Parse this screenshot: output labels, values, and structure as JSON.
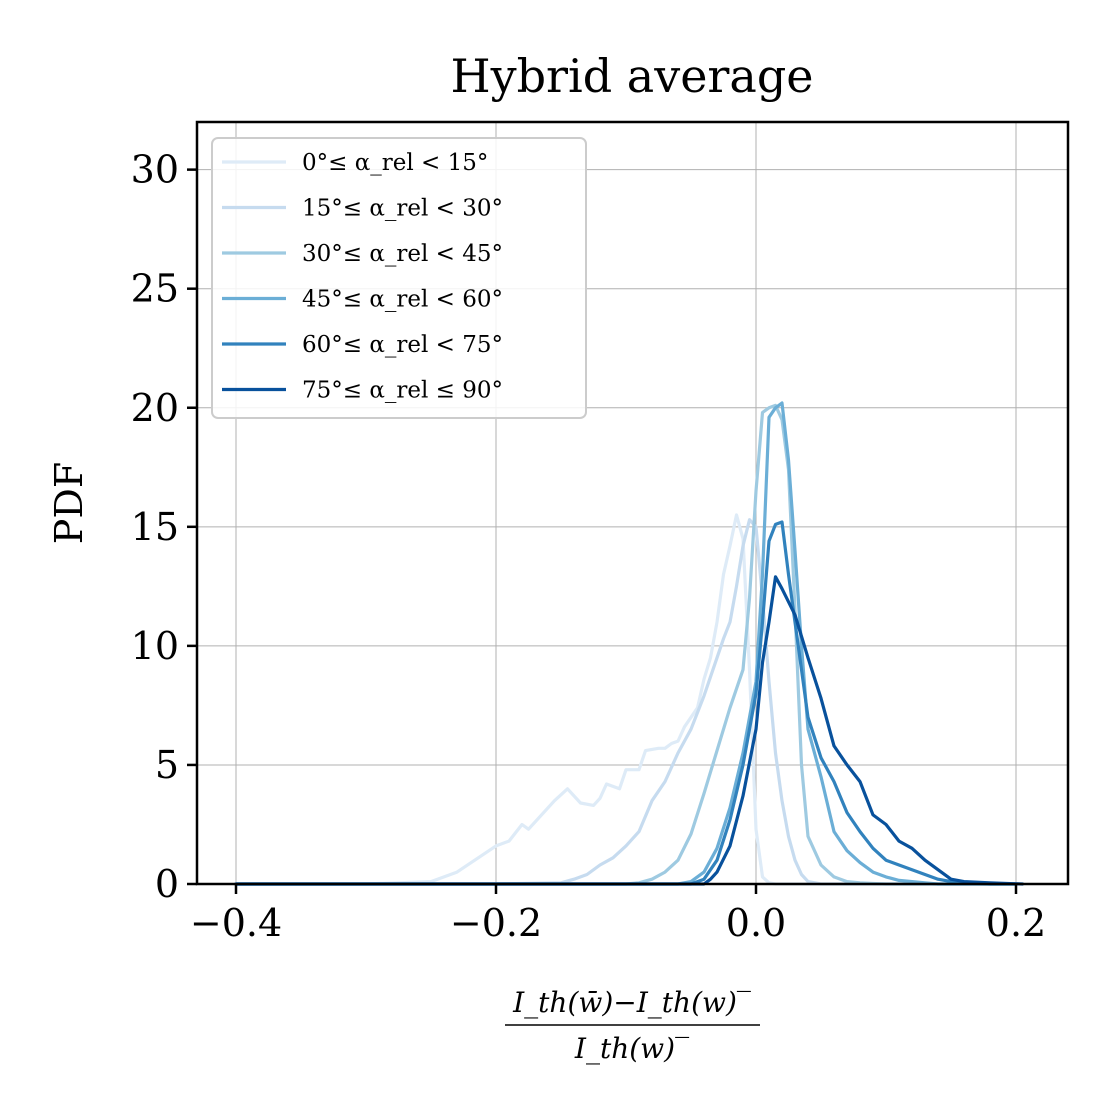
{
  "chart_data": {
    "type": "line",
    "title": "Hybrid average",
    "ylabel": "PDF",
    "xlabel_numerator": "I_th(w̄)−I_th(w)‾",
    "xlabel_denominator": "I_th(w)‾",
    "xlim": [
      -0.43,
      0.24
    ],
    "ylim": [
      0,
      32
    ],
    "xticks": [
      -0.4,
      -0.2,
      0.0,
      0.2
    ],
    "xtick_labels": [
      "−0.4",
      "−0.2",
      "0.0",
      "0.2"
    ],
    "yticks": [
      0,
      5,
      10,
      15,
      20,
      25,
      30
    ],
    "ytick_labels": [
      "0",
      "5",
      "10",
      "15",
      "20",
      "25",
      "30"
    ],
    "grid": true,
    "legend_position": "top-left",
    "series": [
      {
        "name": "0°≤ α_rel < 15°",
        "color": "#deebf7",
        "x": [
          -0.4,
          -0.3,
          -0.25,
          -0.23,
          -0.2,
          -0.19,
          -0.18,
          -0.175,
          -0.165,
          -0.155,
          -0.145,
          -0.135,
          -0.125,
          -0.12,
          -0.115,
          -0.105,
          -0.1,
          -0.09,
          -0.085,
          -0.075,
          -0.07,
          -0.065,
          -0.06,
          -0.055,
          -0.045,
          -0.04,
          -0.035,
          -0.03,
          -0.025,
          -0.02,
          -0.015,
          -0.01,
          -0.005,
          0.0,
          0.005,
          0.01,
          0.015,
          0.2
        ],
        "y": [
          0,
          0,
          0.1,
          0.5,
          1.6,
          1.8,
          2.5,
          2.3,
          2.9,
          3.5,
          4.0,
          3.4,
          3.3,
          3.6,
          4.2,
          4.0,
          4.8,
          4.8,
          5.6,
          5.7,
          5.7,
          5.9,
          6.0,
          6.6,
          7.4,
          8.6,
          9.5,
          11.0,
          13.0,
          14.2,
          15.5,
          14.5,
          9.0,
          2.3,
          0.3,
          0.05,
          0,
          0
        ]
      },
      {
        "name": "15°≤ α_rel < 30°",
        "color": "#c6dbef",
        "x": [
          -0.4,
          -0.2,
          -0.15,
          -0.14,
          -0.13,
          -0.12,
          -0.11,
          -0.1,
          -0.09,
          -0.08,
          -0.07,
          -0.06,
          -0.05,
          -0.045,
          -0.04,
          -0.035,
          -0.03,
          -0.025,
          -0.02,
          -0.015,
          -0.01,
          -0.005,
          0.0,
          0.005,
          0.01,
          0.015,
          0.02,
          0.025,
          0.03,
          0.035,
          0.04,
          0.05,
          0.2
        ],
        "y": [
          0,
          0,
          0.05,
          0.2,
          0.4,
          0.8,
          1.1,
          1.6,
          2.2,
          3.5,
          4.3,
          5.5,
          6.5,
          7.2,
          7.9,
          8.7,
          9.5,
          10.3,
          11.0,
          12.5,
          14.2,
          15.3,
          15.0,
          12.0,
          8.5,
          5.5,
          3.5,
          2.0,
          1.0,
          0.4,
          0.1,
          0,
          0
        ]
      },
      {
        "name": "30°≤ α_rel < 45°",
        "color": "#9ecae1",
        "x": [
          -0.4,
          -0.1,
          -0.09,
          -0.08,
          -0.07,
          -0.06,
          -0.05,
          -0.04,
          -0.03,
          -0.02,
          -0.01,
          -0.005,
          0.0,
          0.005,
          0.01,
          0.015,
          0.02,
          0.025,
          0.03,
          0.035,
          0.04,
          0.05,
          0.06,
          0.07,
          0.08,
          0.09,
          0.1,
          0.2
        ],
        "y": [
          0,
          0,
          0.05,
          0.2,
          0.5,
          1.0,
          2.1,
          3.8,
          5.6,
          7.4,
          9.0,
          12.0,
          16.5,
          19.8,
          20.0,
          20.1,
          19.5,
          17.4,
          11.5,
          5.0,
          2.0,
          0.8,
          0.3,
          0.1,
          0.05,
          0.02,
          0,
          0
        ]
      },
      {
        "name": "45°≤ α_rel < 60°",
        "color": "#6baed6",
        "x": [
          -0.4,
          -0.06,
          -0.05,
          -0.04,
          -0.03,
          -0.02,
          -0.01,
          0.0,
          0.005,
          0.01,
          0.015,
          0.02,
          0.025,
          0.03,
          0.035,
          0.04,
          0.05,
          0.06,
          0.07,
          0.08,
          0.09,
          0.1,
          0.11,
          0.12,
          0.13,
          0.14,
          0.15,
          0.2
        ],
        "y": [
          0,
          0,
          0.1,
          0.5,
          1.5,
          3.2,
          5.5,
          8.5,
          13.0,
          19.6,
          20.0,
          20.2,
          17.8,
          14.0,
          10.0,
          6.5,
          4.5,
          2.2,
          1.4,
          0.9,
          0.5,
          0.3,
          0.15,
          0.1,
          0.05,
          0,
          0,
          0
        ]
      },
      {
        "name": "60°≤ α_rel < 75°",
        "color": "#3182bd",
        "x": [
          -0.4,
          -0.05,
          -0.04,
          -0.03,
          -0.02,
          -0.01,
          0.0,
          0.005,
          0.01,
          0.015,
          0.02,
          0.025,
          0.03,
          0.035,
          0.04,
          0.05,
          0.06,
          0.07,
          0.08,
          0.09,
          0.1,
          0.11,
          0.12,
          0.13,
          0.14,
          0.15,
          0.16,
          0.18,
          0.2
        ],
        "y": [
          0,
          0,
          0.2,
          1.0,
          2.7,
          5.0,
          8.0,
          11.0,
          14.4,
          15.1,
          15.2,
          13.0,
          11.0,
          9.0,
          7.0,
          5.3,
          4.3,
          3.0,
          2.2,
          1.5,
          1.0,
          0.8,
          0.6,
          0.4,
          0.2,
          0.1,
          0.05,
          0,
          0
        ]
      },
      {
        "name": "75°≤ α_rel ≤ 90°",
        "color": "#08519c",
        "x": [
          -0.4,
          -0.04,
          -0.035,
          -0.03,
          -0.02,
          -0.01,
          0.0,
          0.005,
          0.01,
          0.015,
          0.02,
          0.03,
          0.04,
          0.05,
          0.06,
          0.07,
          0.08,
          0.09,
          0.1,
          0.11,
          0.12,
          0.13,
          0.14,
          0.15,
          0.16,
          0.18,
          0.205
        ],
        "y": [
          0,
          0,
          0.2,
          0.5,
          1.6,
          3.7,
          6.5,
          9.3,
          11.0,
          12.9,
          12.4,
          11.3,
          9.5,
          7.8,
          5.8,
          5.0,
          4.3,
          2.9,
          2.5,
          1.8,
          1.5,
          1.0,
          0.6,
          0.2,
          0.1,
          0.05,
          0
        ]
      }
    ]
  }
}
